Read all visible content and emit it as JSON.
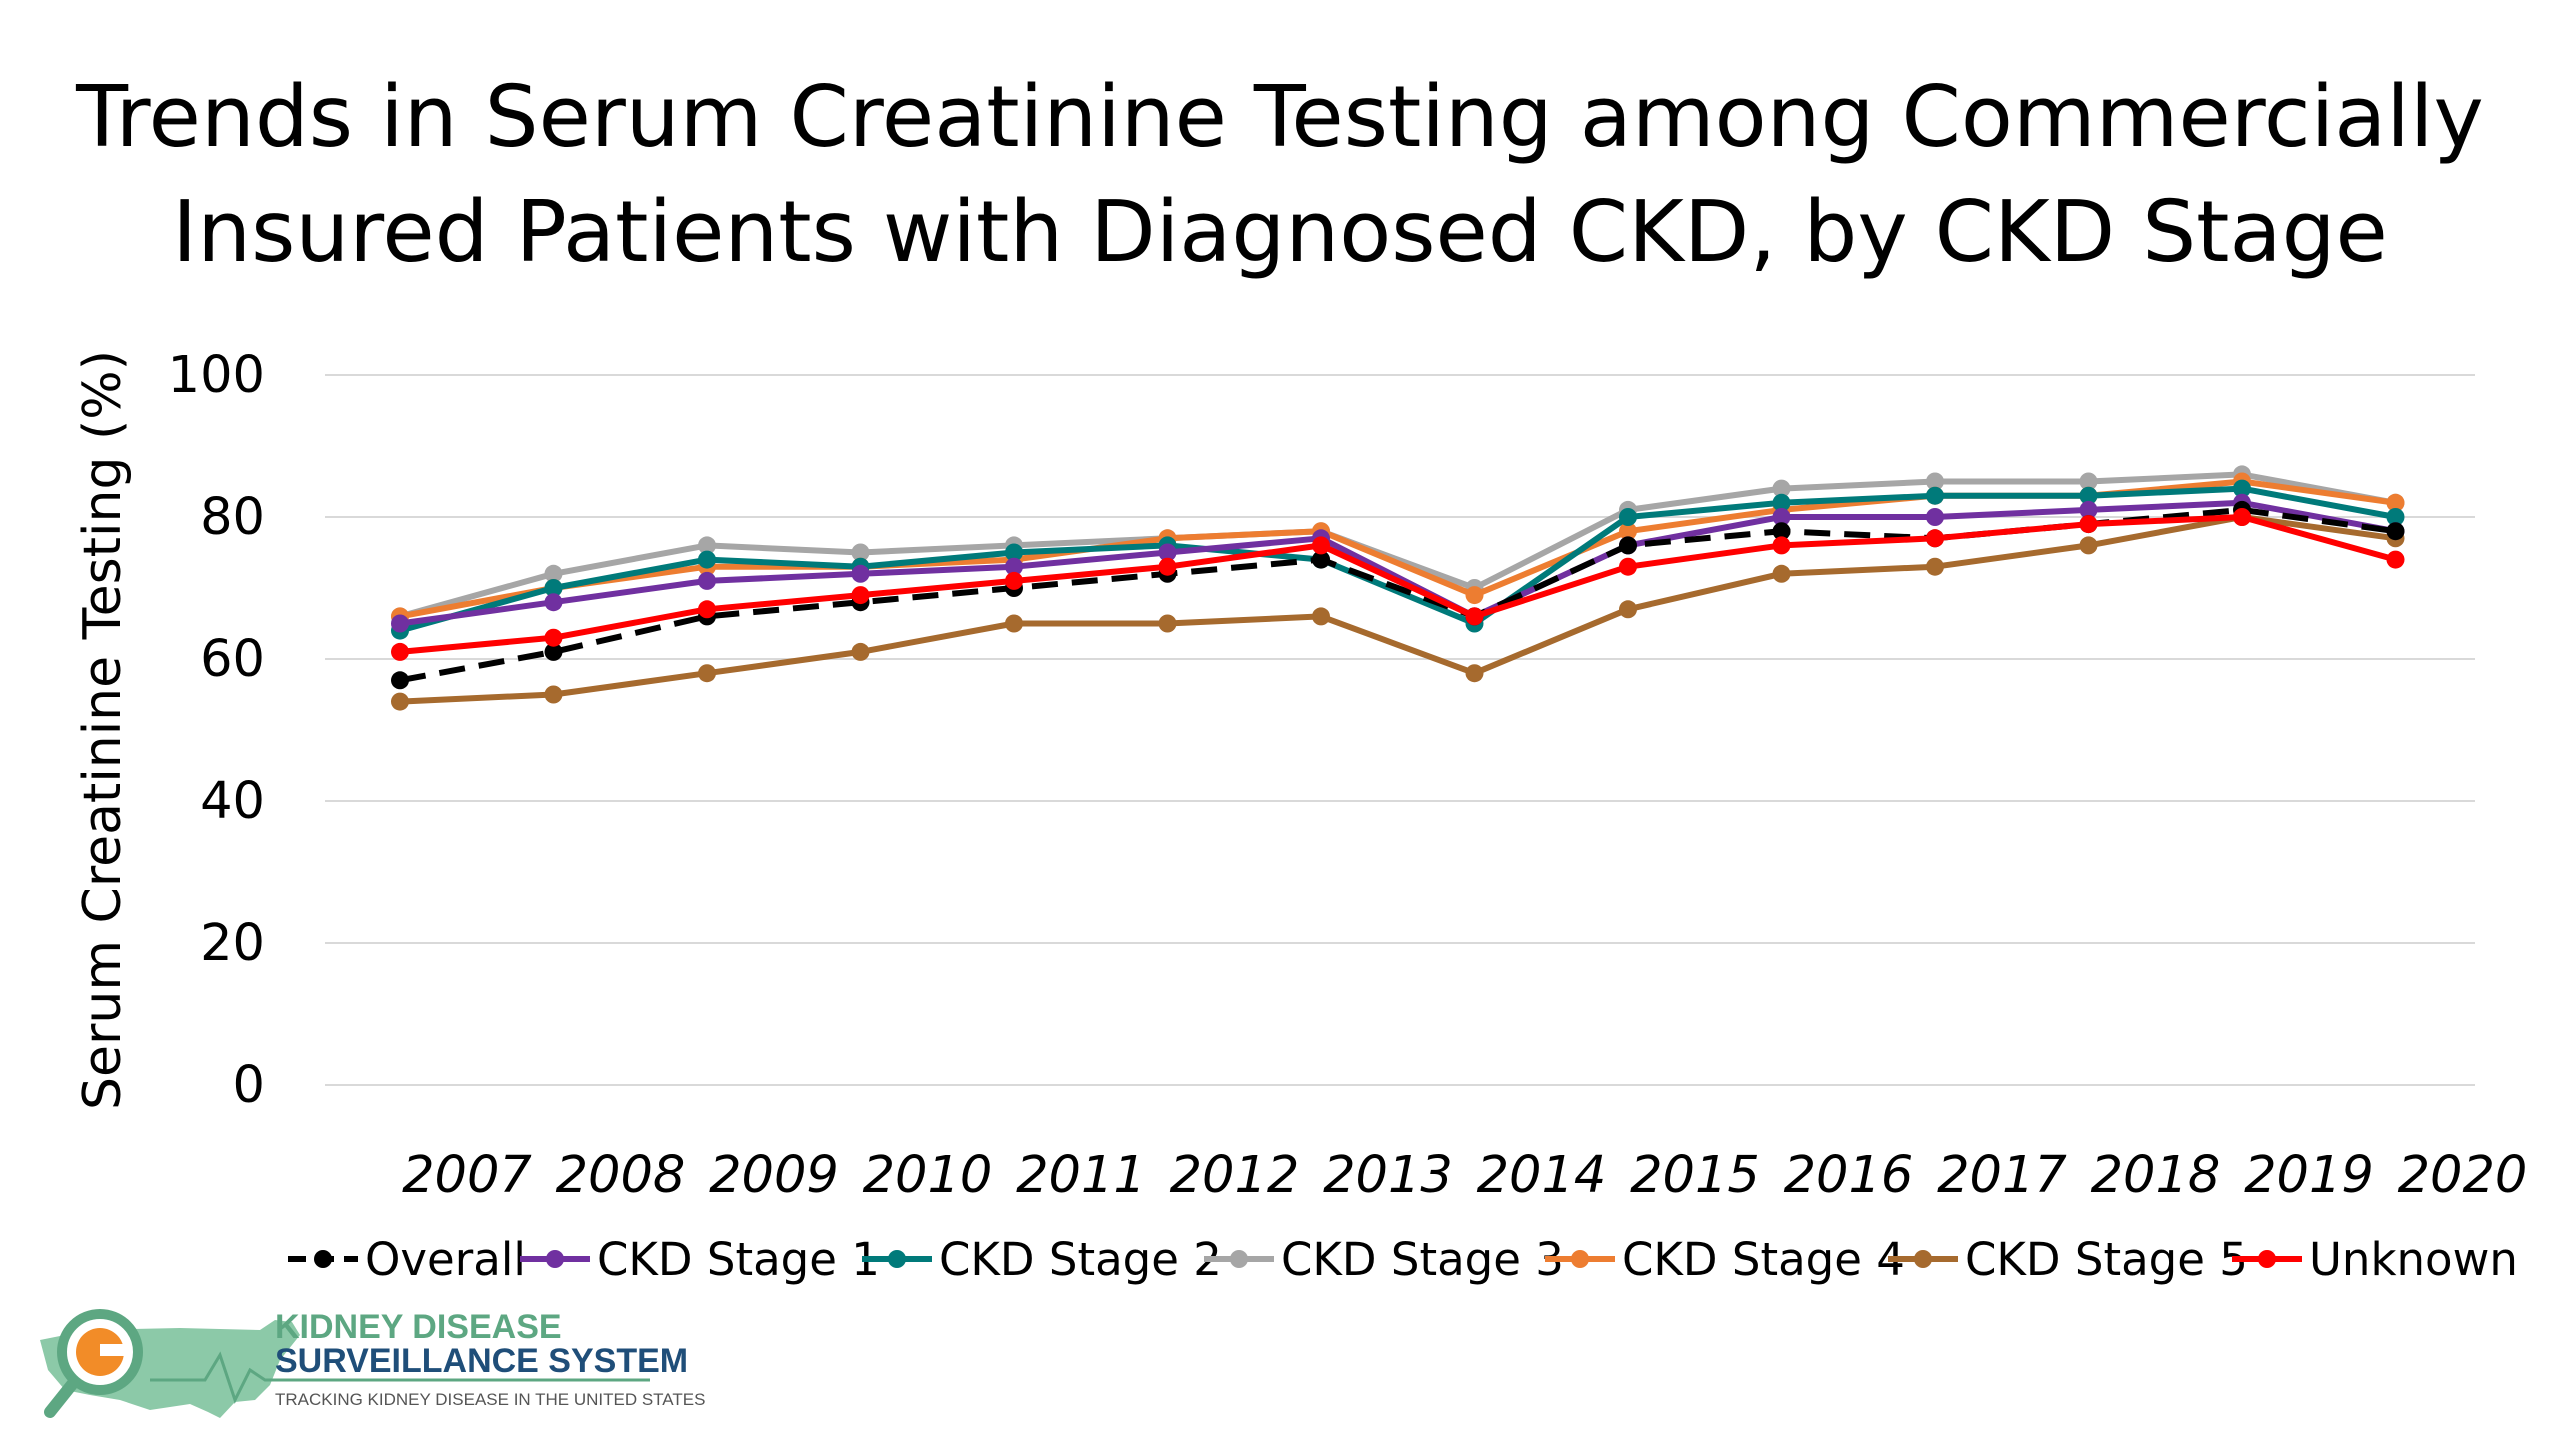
{
  "title_line1": "Trends in Serum Creatinine Testing among Commercially",
  "title_line2": "Insured Patients with Diagnosed CKD, by CKD Stage",
  "logo": {
    "line1": "KIDNEY DISEASE",
    "line2": "SURVEILLANCE SYSTEM",
    "tagline": "TRACKING KIDNEY DISEASE IN THE UNITED STATES"
  },
  "chart_data": {
    "type": "line",
    "title": "Trends in Serum Creatinine Testing among Commercially Insured Patients with Diagnosed CKD, by CKD Stage",
    "ylabel": "Serum Creatinine Testing (%)",
    "xlabel": "",
    "ylim": [
      0,
      100
    ],
    "yticks": [
      0,
      20,
      40,
      60,
      80,
      100
    ],
    "grid": true,
    "legend_position": "bottom",
    "categories": [
      "2007",
      "2008",
      "2009",
      "2010",
      "2011",
      "2012",
      "2013",
      "2014",
      "2015",
      "2016",
      "2017",
      "2018",
      "2019",
      "2020"
    ],
    "series": [
      {
        "name": "Overall",
        "color": "#000000",
        "dashed": true,
        "values": [
          57,
          61,
          66,
          68,
          70,
          72,
          74,
          66,
          76,
          78,
          77,
          79,
          81,
          78
        ]
      },
      {
        "name": "CKD Stage 1",
        "color": "#7030A0",
        "dashed": false,
        "values": [
          65,
          68,
          71,
          72,
          73,
          75,
          77,
          66,
          76,
          80,
          80,
          81,
          82,
          78
        ]
      },
      {
        "name": "CKD Stage 2",
        "color": "#007A7A",
        "dashed": false,
        "values": [
          64,
          70,
          74,
          73,
          75,
          76,
          74,
          65,
          80,
          82,
          83,
          83,
          84,
          80
        ]
      },
      {
        "name": "CKD Stage 3",
        "color": "#A6A6A6",
        "dashed": false,
        "values": [
          66,
          72,
          76,
          75,
          76,
          77,
          78,
          70,
          81,
          84,
          85,
          85,
          86,
          82
        ]
      },
      {
        "name": "CKD Stage 4",
        "color": "#ED7D31",
        "dashed": false,
        "values": [
          66,
          70,
          73,
          73,
          74,
          77,
          78,
          69,
          78,
          81,
          83,
          83,
          85,
          82
        ]
      },
      {
        "name": "CKD Stage 5",
        "color": "#A66A2E",
        "dashed": false,
        "values": [
          54,
          55,
          58,
          61,
          65,
          65,
          66,
          58,
          67,
          72,
          73,
          76,
          80,
          77
        ]
      },
      {
        "name": "Unknown",
        "color": "#FF0000",
        "dashed": false,
        "values": [
          61,
          63,
          67,
          69,
          71,
          73,
          76,
          66,
          73,
          76,
          77,
          79,
          80,
          74
        ]
      }
    ]
  }
}
